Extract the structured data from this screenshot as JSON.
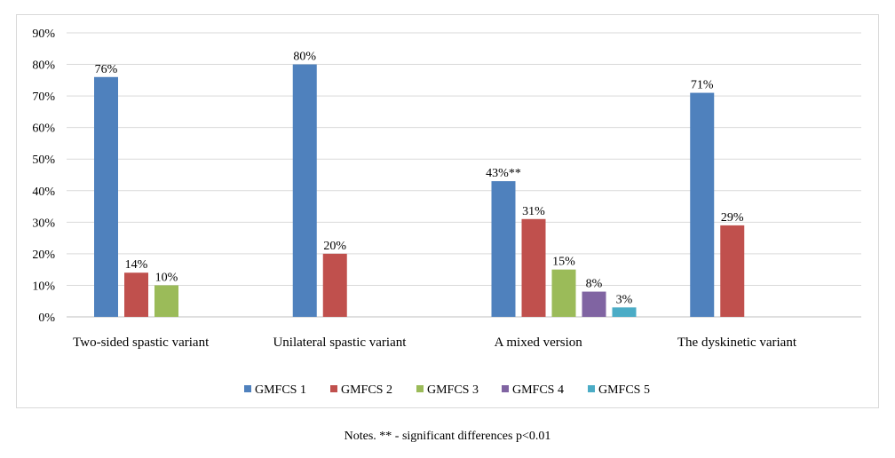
{
  "chart_data": {
    "type": "bar",
    "title": "",
    "xlabel": "",
    "ylabel": "",
    "ylim": [
      0,
      90
    ],
    "y_ticks": [
      {
        "value": 0,
        "label": "0%"
      },
      {
        "value": 10,
        "label": "10%"
      },
      {
        "value": 20,
        "label": "20%"
      },
      {
        "value": 30,
        "label": "30%"
      },
      {
        "value": 40,
        "label": "40%"
      },
      {
        "value": 50,
        "label": "50%"
      },
      {
        "value": 60,
        "label": "60%"
      },
      {
        "value": 70,
        "label": "70%"
      },
      {
        "value": 80,
        "label": "80%"
      },
      {
        "value": 90,
        "label": "90%"
      }
    ],
    "grid": true,
    "legend_position": "bottom",
    "categories": [
      "Two-sided spastic variant",
      "Unilateral spastic variant",
      "A mixed version",
      "The dyskinetic variant"
    ],
    "series": [
      {
        "name": "GMFCS 1",
        "color": "#4f81bd",
        "values": [
          76,
          80,
          43,
          71
        ],
        "labels": [
          "76%",
          "80%",
          "43%**",
          "71%"
        ]
      },
      {
        "name": "GMFCS 2",
        "color": "#c0504d",
        "values": [
          14,
          20,
          31,
          29
        ],
        "labels": [
          "14%",
          "20%",
          "31%",
          "29%"
        ]
      },
      {
        "name": "GMFCS 3",
        "color": "#9bbb59",
        "values": [
          10,
          null,
          15,
          null
        ],
        "labels": [
          "10%",
          null,
          "15%",
          null
        ]
      },
      {
        "name": "GMFCS 4",
        "color": "#8064a2",
        "values": [
          null,
          null,
          8,
          null
        ],
        "labels": [
          null,
          null,
          "8%",
          null
        ]
      },
      {
        "name": "GMFCS 5",
        "color": "#4bacc6",
        "values": [
          null,
          null,
          3,
          null
        ],
        "labels": [
          null,
          null,
          "3%",
          null
        ]
      }
    ]
  },
  "notes": "Notes. ** - significant differences p<0.01"
}
